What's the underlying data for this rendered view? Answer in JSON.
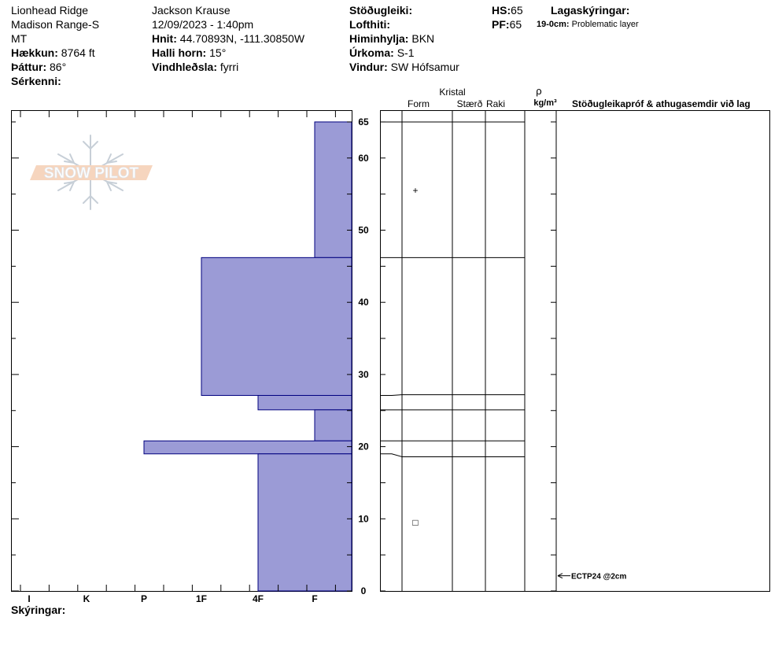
{
  "header": {
    "location": "Lionhead Ridge",
    "range": "Madison Range-S",
    "state": "MT",
    "observer": "Jackson Krause",
    "datetime": "12/09/2023 - 1:40pm",
    "elevation_label": "Hækkun:",
    "elevation": "8764 ft",
    "aspect_label": "Þáttur:",
    "aspect": "86°",
    "features_label": "Sérkenni:",
    "coords_label": "Hnit:",
    "coords": "44.70893N, -111.30850W",
    "slope_label": "Halli horn:",
    "slope": "15°",
    "wind_loading_label": "Vindhleðsla:",
    "wind_loading": "fyrri",
    "stability_label": "Stöðugleiki:",
    "air_temp_label": "Lofthiti:",
    "sky_label": "Himinhylja:",
    "sky": "BKN",
    "precip_label": "Úrkoma:",
    "precip": "S-1",
    "wind_label": "Vindur:",
    "wind": "SW Hófsamur",
    "hs_label": "HS:",
    "hs": "65",
    "pf_label": "PF:",
    "pf": "65",
    "layer_notes_label": "Lagaskýringar:",
    "layer_note_range": "19-0cm:",
    "layer_note_text": "Problematic layer"
  },
  "logo_text": "SNOW PILOT",
  "footer_label": "Skýringar:",
  "columns": {
    "crystal": "Kristal",
    "form": "Form",
    "size": "Stærð",
    "moisture": "Raki",
    "rho": "ρ",
    "density_unit": "kg/m³",
    "tests": "Stöðugleikapróf & athugasemdir við lag"
  },
  "test_result": "ECTP24 @2cm",
  "colors": {
    "layer_fill": "#9b9bd6",
    "layer_stroke": "#00007f"
  },
  "chart_data": {
    "type": "bar",
    "hardness_labels": [
      "I",
      "K",
      "P",
      "1F",
      "4F",
      "F"
    ],
    "depth_ticks": [
      0,
      10,
      20,
      30,
      40,
      50,
      60,
      65
    ],
    "ylim": [
      0,
      65
    ],
    "layers": [
      {
        "top": 65,
        "bottom": 46.2,
        "hardness": "F",
        "form": "+",
        "form_depth": 55.5
      },
      {
        "top": 46.2,
        "bottom": 27.1,
        "hardness": "1F"
      },
      {
        "top": 27.1,
        "bottom": 25.1,
        "hardness": "4F"
      },
      {
        "top": 25.1,
        "bottom": 20.8,
        "hardness": "F"
      },
      {
        "top": 20.8,
        "bottom": 19.0,
        "hardness": "P"
      },
      {
        "top": 19.0,
        "bottom": 0,
        "hardness": "4F",
        "form": "□",
        "form_depth": 9.5
      }
    ],
    "tests": [
      {
        "depth": 2,
        "label": "ECTP24 @2cm"
      }
    ]
  }
}
